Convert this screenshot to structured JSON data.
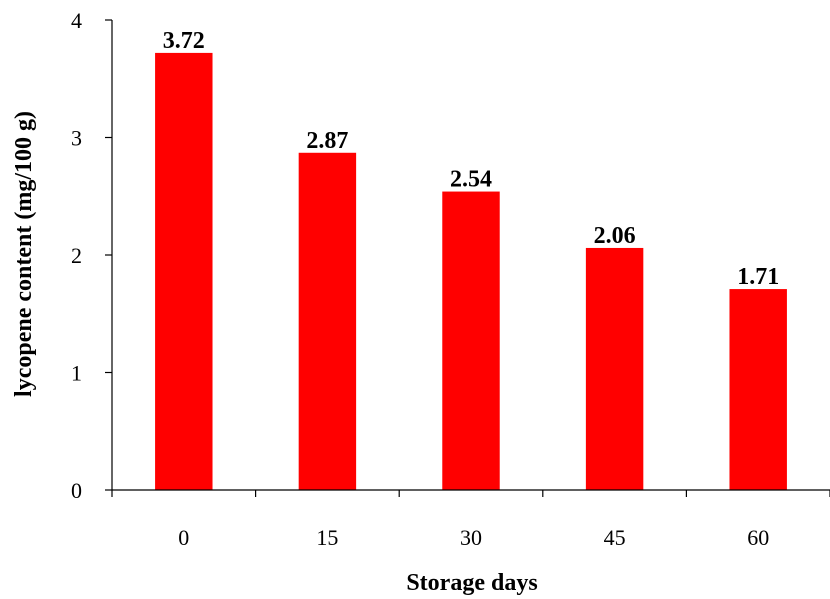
{
  "chart_data": {
    "type": "bar",
    "categories": [
      "0",
      "15",
      "30",
      "45",
      "60"
    ],
    "values": [
      3.72,
      2.87,
      2.54,
      2.06,
      1.71
    ],
    "data_labels": [
      "3.72",
      "2.87",
      "2.54",
      "2.06",
      "1.71"
    ],
    "title": "",
    "xlabel": "Storage days",
    "ylabel": "lycopene  content (mg/100 g)",
    "ylim": [
      0,
      4
    ],
    "yticks": [
      "0",
      "1",
      "2",
      "3",
      "4"
    ],
    "grid": false,
    "legend": "none",
    "colors": {
      "bar": "#ff0000",
      "axis": "#000000"
    }
  }
}
